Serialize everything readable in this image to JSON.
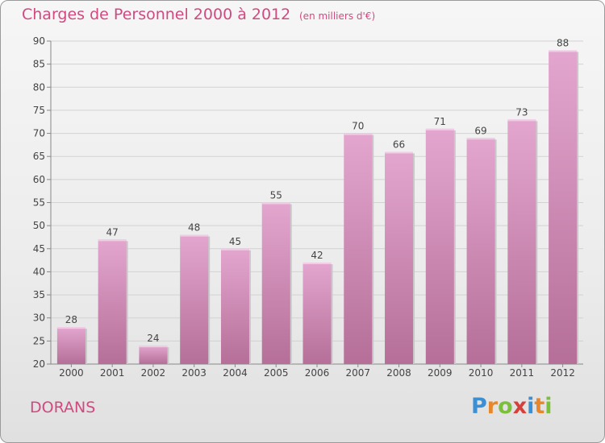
{
  "header": {
    "title": "Charges de Personnel 2000 à 2012",
    "subtitle": "(en milliers d'€)"
  },
  "footer": {
    "city": "DORANS",
    "logo": {
      "text": "Proxiti",
      "letters": [
        "P",
        "r",
        "o",
        "x",
        "i",
        "t",
        "i"
      ],
      "colors": [
        "#3b8fd4",
        "#e8862a",
        "#7cbf3a",
        "#d6403a",
        "#3b8fd4",
        "#e8862a",
        "#7cbf3a"
      ]
    }
  },
  "chart_data": {
    "type": "bar",
    "categories": [
      "2000",
      "2001",
      "2002",
      "2003",
      "2004",
      "2005",
      "2006",
      "2007",
      "2008",
      "2009",
      "2010",
      "2011",
      "2012"
    ],
    "values": [
      28,
      47,
      24,
      48,
      45,
      55,
      42,
      70,
      66,
      71,
      69,
      73,
      88
    ],
    "title": "Charges de Personnel 2000 à 2012",
    "xlabel": "",
    "ylabel": "",
    "ylim": [
      20,
      90
    ],
    "yticks": [
      20,
      25,
      30,
      35,
      40,
      45,
      50,
      55,
      60,
      65,
      70,
      75,
      80,
      85,
      90
    ],
    "grid": true,
    "bar_color_top": "#e3a6cf",
    "bar_color_bottom": "#b56f98"
  }
}
